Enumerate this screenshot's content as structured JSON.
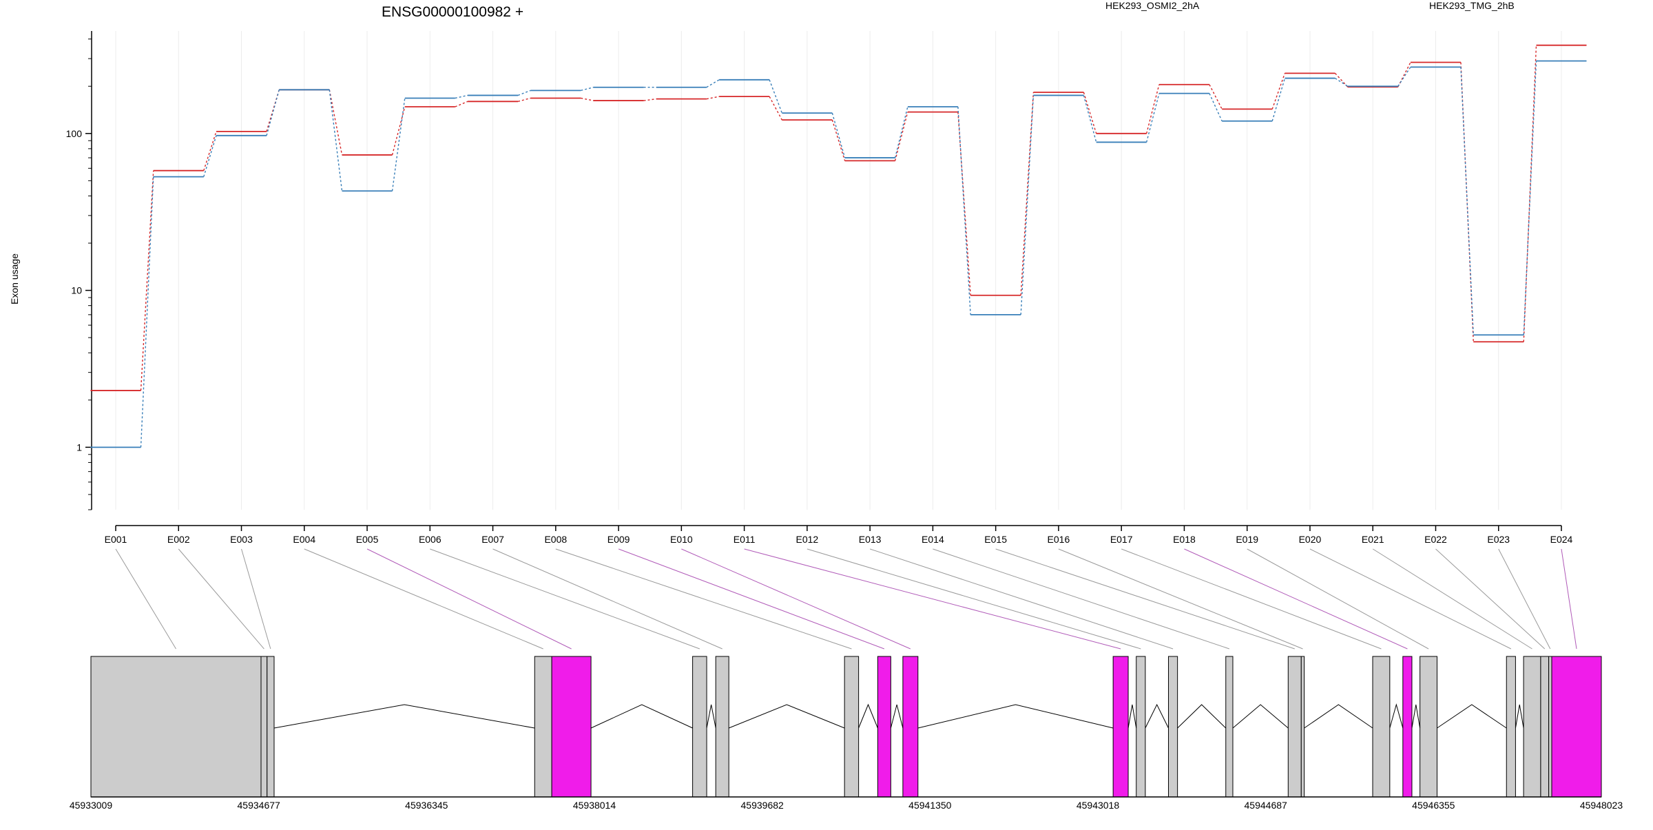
{
  "chart_data": {
    "type": "line",
    "title": "ENSG00000100982 +",
    "ylabel": "Exon usage",
    "y_scale": "log",
    "ylim": [
      0.4,
      450
    ],
    "y_ticks": [
      1,
      10,
      100
    ],
    "y_tick_labels": [
      "1",
      "10",
      "100"
    ],
    "grid": true,
    "legend_placement": "top",
    "categories": [
      "E001",
      "E002",
      "E003",
      "E004",
      "E005",
      "E006",
      "E007",
      "E008",
      "E009",
      "E010",
      "E011",
      "E012",
      "E013",
      "E014",
      "E015",
      "E016",
      "E017",
      "E018",
      "E019",
      "E020",
      "E021",
      "E022",
      "E023",
      "E024"
    ],
    "series": [
      {
        "name": "HEK293_OSMI2_2hA",
        "color": "#d62728",
        "values": [
          2.3,
          58,
          103,
          190,
          73,
          148,
          160,
          168,
          162,
          166,
          172,
          122,
          67,
          137,
          9.3,
          183,
          100,
          205,
          143,
          242,
          198,
          284,
          4.7,
          365
        ]
      },
      {
        "name": "HEK293_TMG_2hB",
        "color": "#377eb8",
        "values": [
          1.0,
          53,
          97,
          190,
          43,
          168,
          175,
          188,
          197,
          197,
          220,
          135,
          70,
          148,
          7.0,
          175,
          88,
          180,
          120,
          225,
          200,
          265,
          5.2,
          290
        ]
      }
    ],
    "gene_model": {
      "coordinate_labels": [
        "45933009",
        "45934677",
        "45936345",
        "45938014",
        "45939682",
        "45941350",
        "45943018",
        "45944687",
        "45946355",
        "45948023"
      ],
      "genomic_range": [
        45933009,
        45948023
      ],
      "exons": [
        {
          "id": "E001",
          "start": 45933009,
          "end": 45934700,
          "highlight": false
        },
        {
          "id": "E002",
          "start": 45934700,
          "end": 45934760,
          "highlight": false
        },
        {
          "id": "E003",
          "start": 45934760,
          "end": 45934830,
          "highlight": false
        },
        {
          "id": "E004",
          "start": 45937420,
          "end": 45937590,
          "highlight": false
        },
        {
          "id": "E005",
          "start": 45937590,
          "end": 45937980,
          "highlight": true
        },
        {
          "id": "E006",
          "start": 45938990,
          "end": 45939130,
          "highlight": false
        },
        {
          "id": "E007",
          "start": 45939220,
          "end": 45939350,
          "highlight": false
        },
        {
          "id": "E008",
          "start": 45940500,
          "end": 45940640,
          "highlight": false
        },
        {
          "id": "E009",
          "start": 45940830,
          "end": 45940960,
          "highlight": true
        },
        {
          "id": "E010",
          "start": 45941080,
          "end": 45941230,
          "highlight": true
        },
        {
          "id": "E011",
          "start": 45943170,
          "end": 45943320,
          "highlight": true
        },
        {
          "id": "E012",
          "start": 45943400,
          "end": 45943490,
          "highlight": false
        },
        {
          "id": "E013",
          "start": 45943720,
          "end": 45943810,
          "highlight": false
        },
        {
          "id": "E014",
          "start": 45944290,
          "end": 45944360,
          "highlight": false
        },
        {
          "id": "E015",
          "start": 45944910,
          "end": 45945040,
          "highlight": false
        },
        {
          "id": "E016",
          "start": 45945040,
          "end": 45945070,
          "highlight": false
        },
        {
          "id": "E017",
          "start": 45945750,
          "end": 45945920,
          "highlight": false
        },
        {
          "id": "E018",
          "start": 45946050,
          "end": 45946140,
          "highlight": true
        },
        {
          "id": "E019",
          "start": 45946220,
          "end": 45946390,
          "highlight": false
        },
        {
          "id": "E020",
          "start": 45947080,
          "end": 45947170,
          "highlight": false
        },
        {
          "id": "E021",
          "start": 45947250,
          "end": 45947420,
          "highlight": false
        },
        {
          "id": "E022",
          "start": 45947420,
          "end": 45947500,
          "highlight": false
        },
        {
          "id": "E023",
          "start": 45947500,
          "end": 45947530,
          "highlight": false
        },
        {
          "id": "E024",
          "start": 45947530,
          "end": 45948023,
          "highlight": true
        }
      ],
      "colors": {
        "exon": "#cccccc",
        "highlight": "#f01cea",
        "connector": "#999999",
        "connector_highlight": "#b05ab8"
      }
    }
  }
}
